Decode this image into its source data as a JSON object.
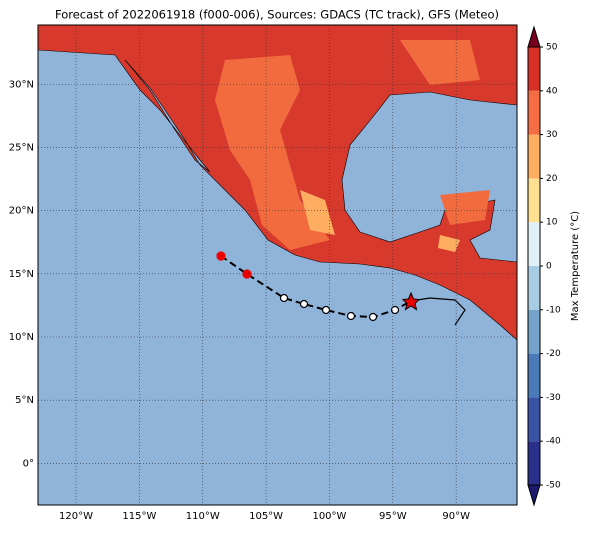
{
  "title": "Forecast of 2022061918 (f000-006), Sources: GDACS (TC track), GFS (Meteo)",
  "map": {
    "lonlim": [
      -123,
      -85.2
    ],
    "latlim": [
      -3.3,
      34.7
    ],
    "lonticks": [
      {
        "value": -120,
        "label": "120°W"
      },
      {
        "value": -115,
        "label": "115°W"
      },
      {
        "value": -110,
        "label": "110°W"
      },
      {
        "value": -105,
        "label": "105°W"
      },
      {
        "value": -100,
        "label": "100°W"
      },
      {
        "value": -95,
        "label": "95°W"
      },
      {
        "value": -90,
        "label": "90°W"
      }
    ],
    "latticks": [
      {
        "value": 0,
        "label": "0°"
      },
      {
        "value": 5,
        "label": "5°N"
      },
      {
        "value": 10,
        "label": "10°N"
      },
      {
        "value": 15,
        "label": "15°N"
      },
      {
        "value": 20,
        "label": "20°N"
      },
      {
        "value": 25,
        "label": "25°N"
      },
      {
        "value": 30,
        "label": "30°N"
      }
    ],
    "grid": true
  },
  "colorbar": {
    "label": "Max Temperature (°C)",
    "ticks": [
      -50,
      -40,
      -30,
      -20,
      -10,
      0,
      10,
      20,
      30,
      40,
      50
    ],
    "colors": [
      "#1a1a6e",
      "#2b2f8c",
      "#3953a4",
      "#4a7ab8",
      "#75a3cc",
      "#a7cce3",
      "#e0f0f6",
      "#fee090",
      "#fdae61",
      "#f46d43",
      "#d73027",
      "#a50026",
      "#7a0020"
    ]
  }
}
